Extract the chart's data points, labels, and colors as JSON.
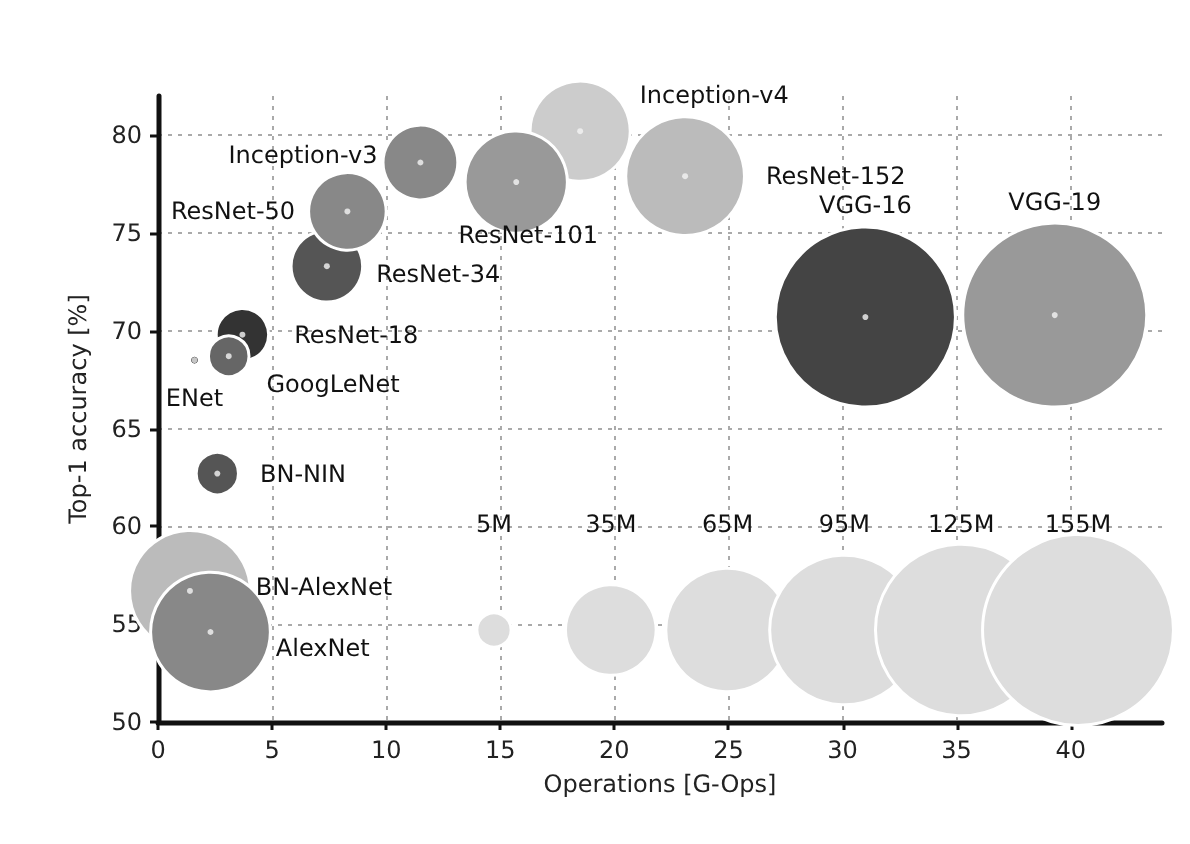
{
  "chart_data": {
    "type": "bubble",
    "xlabel": "Operations [G-Ops]",
    "ylabel": "Top-1 accuracy [%]",
    "xlim": [
      0,
      44
    ],
    "xticks": [
      0,
      5,
      10,
      15,
      20,
      25,
      30,
      35,
      40
    ],
    "ylim": [
      50,
      82
    ],
    "yticks": [
      50,
      55,
      60,
      65,
      70,
      75,
      80
    ],
    "grid": true,
    "legend": false,
    "size_legend": [
      {
        "value": 5,
        "label": "5M"
      },
      {
        "value": 35,
        "label": "35M"
      },
      {
        "value": 65,
        "label": "65M"
      },
      {
        "value": 95,
        "label": "95M"
      },
      {
        "value": 125,
        "label": "125M"
      },
      {
        "value": 155,
        "label": "155M"
      }
    ],
    "series": [
      {
        "name": "BN-AlexNet",
        "color": "#bbbbbb",
        "x": [
          1.4
        ],
        "values": [
          56.7
        ],
        "sizes": [
          62
        ]
      },
      {
        "name": "AlexNet",
        "color": "#888888",
        "x": [
          2.3
        ],
        "values": [
          54.6
        ],
        "sizes": [
          61
        ]
      },
      {
        "name": "BN-NIN",
        "color": "#555555",
        "x": [
          2.6
        ],
        "values": [
          62.7
        ],
        "sizes": [
          7.6
        ]
      },
      {
        "name": "ENet",
        "color": "#111111",
        "x": [
          1.6
        ],
        "values": [
          68.5
        ],
        "sizes": [
          0.4
        ]
      },
      {
        "name": "ResNet-18",
        "color": "#333333",
        "x": [
          3.7
        ],
        "values": [
          69.8
        ],
        "sizes": [
          11.7
        ]
      },
      {
        "name": "GoogLeNet",
        "color": "#666666",
        "x": [
          3.1
        ],
        "values": [
          68.7
        ],
        "sizes": [
          7
        ]
      },
      {
        "name": "ResNet-34",
        "color": "#555555",
        "x": [
          7.4
        ],
        "values": [
          73.3
        ],
        "sizes": [
          21.8
        ]
      },
      {
        "name": "ResNet-50",
        "color": "#888888",
        "x": [
          8.3
        ],
        "values": [
          76.1
        ],
        "sizes": [
          25.6
        ]
      },
      {
        "name": "Inception-v3",
        "color": "#888888",
        "x": [
          11.5
        ],
        "values": [
          78.6
        ],
        "sizes": [
          23.8
        ]
      },
      {
        "name": "Inception-v4",
        "color": "#cccccc",
        "x": [
          18.5
        ],
        "values": [
          80.2
        ],
        "sizes": [
          42.7
        ]
      },
      {
        "name": "ResNet-101",
        "color": "#999999",
        "x": [
          15.7
        ],
        "values": [
          77.6
        ],
        "sizes": [
          44.5
        ]
      },
      {
        "name": "ResNet-152",
        "color": "#bbbbbb",
        "x": [
          23.1
        ],
        "values": [
          77.9
        ],
        "sizes": [
          60
        ]
      },
      {
        "name": "VGG-16",
        "color": "#444444",
        "x": [
          31.0
        ],
        "values": [
          70.7
        ],
        "sizes": [
          138
        ]
      },
      {
        "name": "VGG-19",
        "color": "#999999",
        "x": [
          39.3
        ],
        "values": [
          70.8
        ],
        "sizes": [
          144
        ]
      }
    ]
  }
}
